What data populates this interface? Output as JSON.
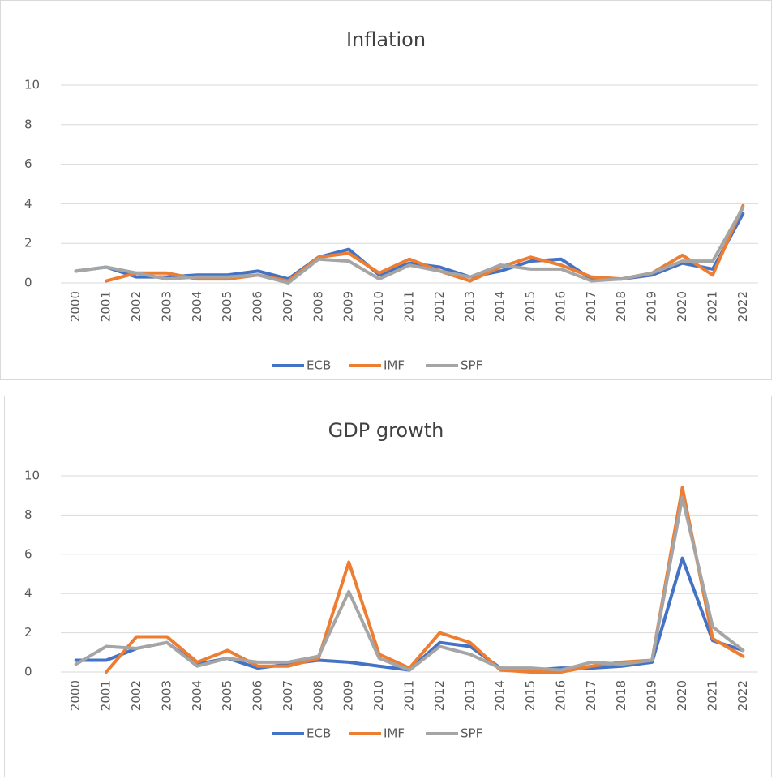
{
  "chart_data": [
    {
      "type": "line",
      "title": "Inflation",
      "categories": [
        "2000",
        "2001",
        "2002",
        "2003",
        "2004",
        "2005",
        "2006",
        "2007",
        "2008",
        "2009",
        "2010",
        "2011",
        "2012",
        "2013",
        "2014",
        "2015",
        "2016",
        "2017",
        "2018",
        "2019",
        "2020",
        "2021",
        "2022"
      ],
      "series": [
        {
          "name": "ECB",
          "color": "#4472c4",
          "values": [
            0.6,
            0.8,
            0.3,
            0.3,
            0.4,
            0.4,
            0.6,
            0.2,
            1.3,
            1.7,
            0.4,
            1.0,
            0.8,
            0.3,
            0.6,
            1.1,
            1.2,
            0.2,
            0.2,
            0.4,
            1.0,
            0.7,
            3.5
          ]
        },
        {
          "name": "IMF",
          "color": "#ed7d31",
          "values": [
            null,
            0.1,
            0.5,
            0.5,
            0.2,
            0.2,
            0.4,
            0.1,
            1.3,
            1.5,
            0.5,
            1.2,
            0.6,
            0.1,
            0.8,
            1.3,
            0.9,
            0.3,
            0.2,
            0.5,
            1.4,
            0.4,
            3.9
          ]
        },
        {
          "name": "SPF",
          "color": "#a5a5a5",
          "values": [
            0.6,
            0.8,
            0.5,
            0.2,
            0.3,
            0.3,
            0.4,
            0.0,
            1.2,
            1.1,
            0.2,
            0.9,
            0.6,
            0.3,
            0.9,
            0.7,
            0.7,
            0.1,
            0.2,
            0.5,
            1.1,
            1.1,
            3.8
          ]
        }
      ],
      "ylim": [
        0,
        10
      ],
      "yticks": [
        0,
        2,
        4,
        6,
        8,
        10
      ],
      "grid": true,
      "legend": "bottom"
    },
    {
      "type": "line",
      "title": "GDP growth",
      "categories": [
        "2000",
        "2001",
        "2002",
        "2003",
        "2004",
        "2005",
        "2006",
        "2007",
        "2008",
        "2009",
        "2010",
        "2011",
        "2012",
        "2013",
        "2014",
        "2015",
        "2016",
        "2017",
        "2018",
        "2019",
        "2020",
        "2021",
        "2022"
      ],
      "series": [
        {
          "name": "ECB",
          "color": "#4472c4",
          "values": [
            0.6,
            0.6,
            1.2,
            1.5,
            0.4,
            0.7,
            0.2,
            0.4,
            0.6,
            0.5,
            0.3,
            0.1,
            1.5,
            1.3,
            0.2,
            0.1,
            0.2,
            0.2,
            0.3,
            0.5,
            5.8,
            1.6,
            1.1
          ]
        },
        {
          "name": "IMF",
          "color": "#ed7d31",
          "values": [
            null,
            0.0,
            1.8,
            1.8,
            0.5,
            1.1,
            0.3,
            0.3,
            0.7,
            5.6,
            0.9,
            0.2,
            2.0,
            1.5,
            0.1,
            0.0,
            0.0,
            0.3,
            0.5,
            0.6,
            9.4,
            1.7,
            0.8
          ]
        },
        {
          "name": "SPF",
          "color": "#a5a5a5",
          "values": [
            0.4,
            1.3,
            1.2,
            1.5,
            0.3,
            0.7,
            0.5,
            0.5,
            0.8,
            4.1,
            0.7,
            0.1,
            1.3,
            0.9,
            0.2,
            0.2,
            0.1,
            0.5,
            0.4,
            0.6,
            8.9,
            2.3,
            1.1
          ]
        }
      ],
      "ylim": [
        0,
        10
      ],
      "yticks": [
        0,
        2,
        4,
        6,
        8,
        10
      ],
      "grid": true,
      "legend": "bottom"
    }
  ]
}
